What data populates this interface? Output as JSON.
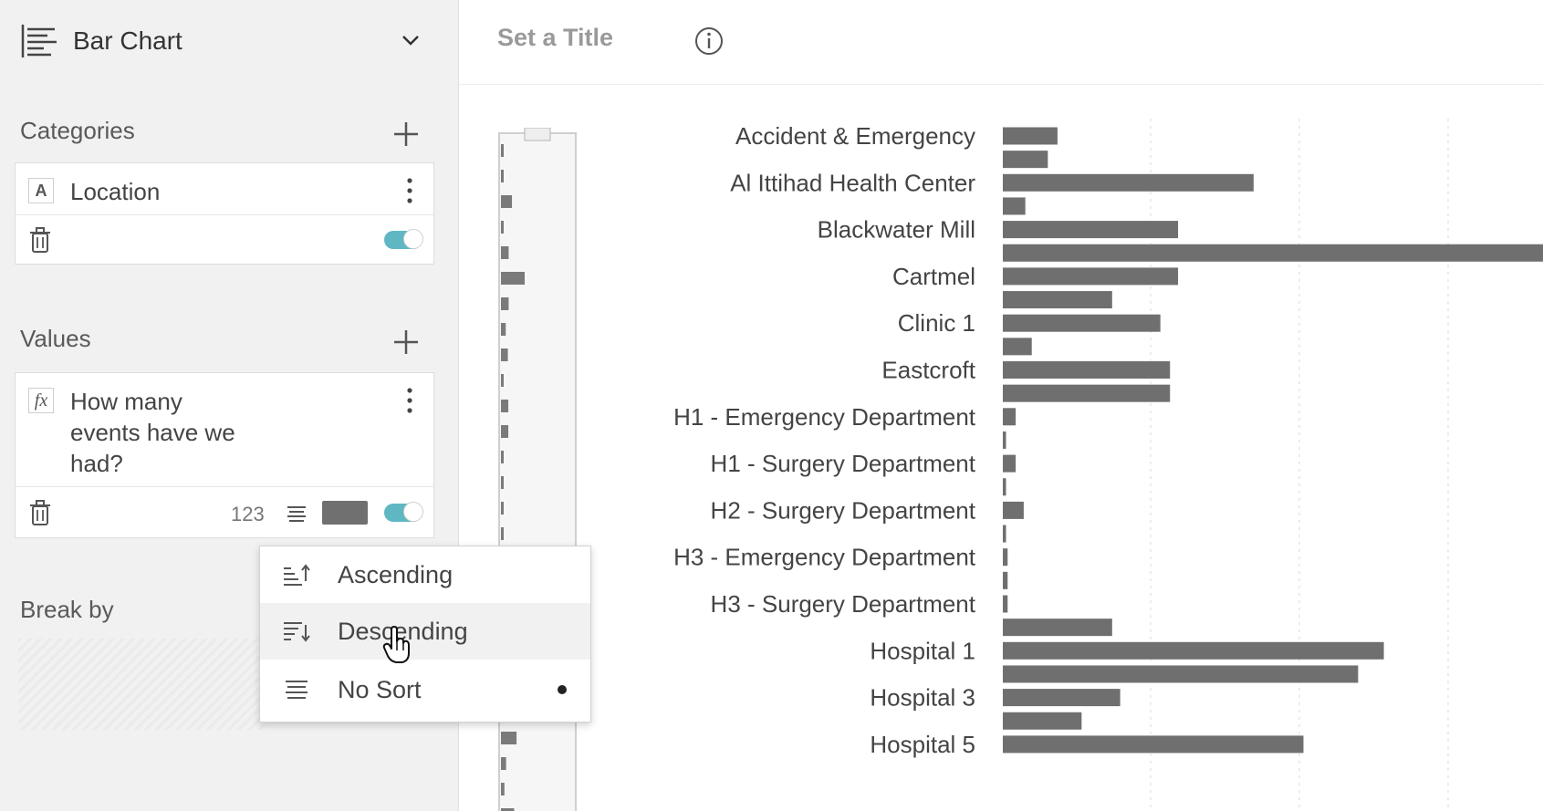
{
  "panel": {
    "chart_type": "Bar Chart",
    "chart_type_icon": "bar-chart-icon",
    "categories": {
      "title": "Categories",
      "field": {
        "type_badge": "A",
        "name": "Location",
        "enabled": true
      }
    },
    "values": {
      "title": "Values",
      "field": {
        "type_badge": "fx",
        "name_lines": [
          "How many",
          "events have we",
          "had?"
        ],
        "format": "123",
        "color": "#707070",
        "enabled": true
      }
    },
    "break_by": {
      "title": "Break by"
    }
  },
  "sort_menu": {
    "items": [
      {
        "label": "Ascending",
        "icon": "sort-ascending-icon",
        "selected": false
      },
      {
        "label": "Descending",
        "icon": "sort-descending-icon",
        "selected": false
      },
      {
        "label": "No Sort",
        "icon": "no-sort-icon",
        "selected": true
      }
    ],
    "hovered": "Descending"
  },
  "header": {
    "title_placeholder": "Set a Title"
  },
  "colors": {
    "bar": "#6f6f6f",
    "toggle_on": "#5fb7c3",
    "grid": "#d9d9d9"
  },
  "chart_data": {
    "type": "bar",
    "orientation": "horizontal",
    "label_every": 2,
    "categories": [
      "Accident & Emergency",
      "",
      "Al Ittihad Health Center",
      "",
      "Blackwater Mill",
      "",
      "Cartmel",
      "",
      "Clinic 1",
      "",
      "Eastcroft",
      "",
      "H1 - Emergency Department",
      "",
      "H1 - Surgery Department",
      "",
      "H2 - Surgery Department",
      "",
      "H3 - Emergency Department",
      "",
      "H3 - Surgery Department",
      "",
      "Hospital 1",
      "",
      "Hospital 3",
      "",
      "Hospital 5"
    ],
    "values": [
      34,
      28,
      156,
      14,
      109,
      336,
      109,
      68,
      98,
      18,
      104,
      104,
      8,
      2,
      8,
      2,
      13,
      2,
      3,
      3,
      3,
      68,
      237,
      221,
      73,
      49,
      187
    ],
    "xlim": [
      0,
      336
    ],
    "grid": true
  }
}
